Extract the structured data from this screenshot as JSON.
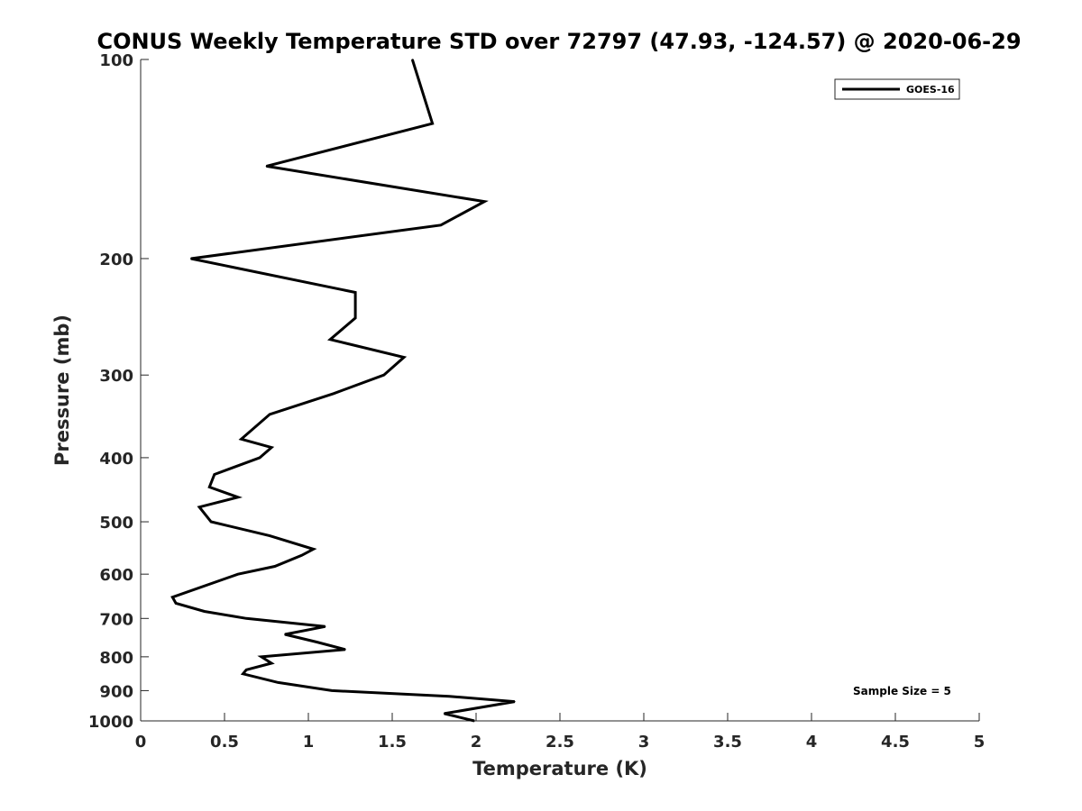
{
  "chart_data": {
    "type": "line",
    "title": "CONUS Weekly Temperature STD over 72797 (47.93, -124.57) @ 2020-06-29",
    "xlabel": "Temperature (K)",
    "ylabel": "Pressure (mb)",
    "xlim": [
      0,
      5
    ],
    "ylim": [
      100,
      1000
    ],
    "y_scale": "log",
    "y_reversed": true,
    "xticks": [
      0,
      0.5,
      1,
      1.5,
      2,
      2.5,
      3,
      3.5,
      4,
      4.5,
      5
    ],
    "xtick_labels": [
      "0",
      "0.5",
      "1",
      "1.5",
      "2",
      "2.5",
      "3",
      "3.5",
      "4",
      "4.5",
      "5"
    ],
    "yticks": [
      100,
      200,
      300,
      400,
      500,
      600,
      700,
      800,
      900,
      1000
    ],
    "ytick_labels": [
      "100",
      "200",
      "300",
      "400",
      "500",
      "600",
      "700",
      "800",
      "900",
      "1000"
    ],
    "grid": false,
    "legend_position": "top-right",
    "annotation": "Sample Size = 5",
    "line_color": "#000000",
    "series": [
      {
        "name": "GOES-16",
        "points": [
          [
            1.62,
            100
          ],
          [
            1.74,
            125
          ],
          [
            0.75,
            145
          ],
          [
            2.05,
            164
          ],
          [
            1.79,
            178
          ],
          [
            0.3,
            200
          ],
          [
            1.28,
            225
          ],
          [
            1.28,
            246
          ],
          [
            1.13,
            265
          ],
          [
            1.57,
            282
          ],
          [
            1.45,
            300
          ],
          [
            1.15,
            320
          ],
          [
            0.77,
            344
          ],
          [
            0.6,
            375
          ],
          [
            0.78,
            386
          ],
          [
            0.71,
            400
          ],
          [
            0.44,
            424
          ],
          [
            0.41,
            443
          ],
          [
            0.58,
            459
          ],
          [
            0.35,
            475
          ],
          [
            0.42,
            500
          ],
          [
            0.77,
            525
          ],
          [
            1.03,
            550
          ],
          [
            0.96,
            562
          ],
          [
            0.8,
            584
          ],
          [
            0.58,
            600
          ],
          [
            0.19,
            650
          ],
          [
            0.21,
            664
          ],
          [
            0.38,
            683
          ],
          [
            0.63,
            700
          ],
          [
            1.1,
            720
          ],
          [
            0.86,
            740
          ],
          [
            1.05,
            760
          ],
          [
            1.22,
            780
          ],
          [
            0.72,
            800
          ],
          [
            0.78,
            818
          ],
          [
            0.63,
            837
          ],
          [
            0.61,
            849
          ],
          [
            0.82,
            875
          ],
          [
            1.14,
            900
          ],
          [
            1.84,
            918
          ],
          [
            2.23,
            935
          ],
          [
            1.81,
            975
          ],
          [
            1.99,
            1000
          ]
        ]
      }
    ]
  }
}
